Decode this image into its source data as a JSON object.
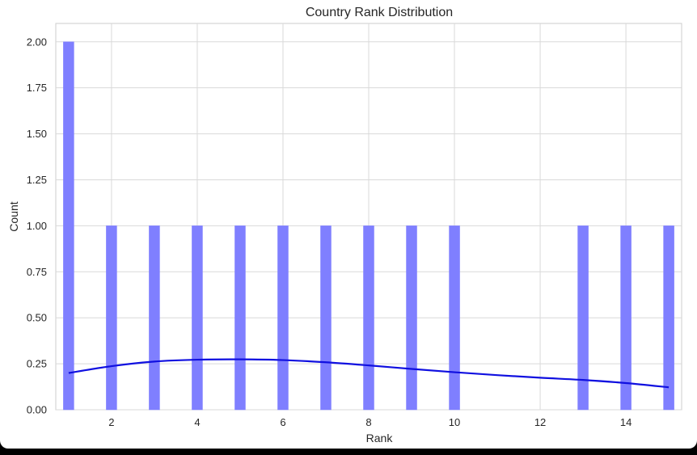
{
  "chart_data": {
    "type": "bar",
    "title": "Country Rank Distribution",
    "xlabel": "Rank",
    "ylabel": "Count",
    "xlim": [
      0.7,
      15.3
    ],
    "ylim": [
      0,
      2.1
    ],
    "xticks": [
      2,
      4,
      6,
      8,
      10,
      12,
      14
    ],
    "yticks": [
      0,
      0.25,
      0.5,
      0.75,
      1.0,
      1.25,
      1.5,
      1.75,
      2.0
    ],
    "ytick_labels": [
      "0.00",
      "0.25",
      "0.50",
      "0.75",
      "1.00",
      "1.25",
      "1.50",
      "1.75",
      "2.00"
    ],
    "grid": true,
    "bars": [
      {
        "x": 1,
        "count": 2
      },
      {
        "x": 2,
        "count": 1
      },
      {
        "x": 3,
        "count": 1
      },
      {
        "x": 4,
        "count": 1
      },
      {
        "x": 5,
        "count": 1
      },
      {
        "x": 6,
        "count": 1
      },
      {
        "x": 7,
        "count": 1
      },
      {
        "x": 8,
        "count": 1
      },
      {
        "x": 9,
        "count": 1
      },
      {
        "x": 10,
        "count": 1
      },
      {
        "x": 13,
        "count": 1
      },
      {
        "x": 14,
        "count": 1
      },
      {
        "x": 15,
        "count": 1
      }
    ],
    "kde": {
      "x": [
        1,
        2,
        3,
        4,
        5,
        6,
        7,
        8,
        9,
        10,
        11,
        12,
        13,
        14,
        15
      ],
      "y": [
        0.2,
        0.237,
        0.262,
        0.272,
        0.274,
        0.27,
        0.258,
        0.241,
        0.222,
        0.204,
        0.188,
        0.174,
        0.162,
        0.145,
        0.122
      ]
    },
    "colors": {
      "bar": "#7f7fff",
      "kde": "#1010e0",
      "grid": "#d9d9d9",
      "frame": "#cccccc"
    }
  }
}
